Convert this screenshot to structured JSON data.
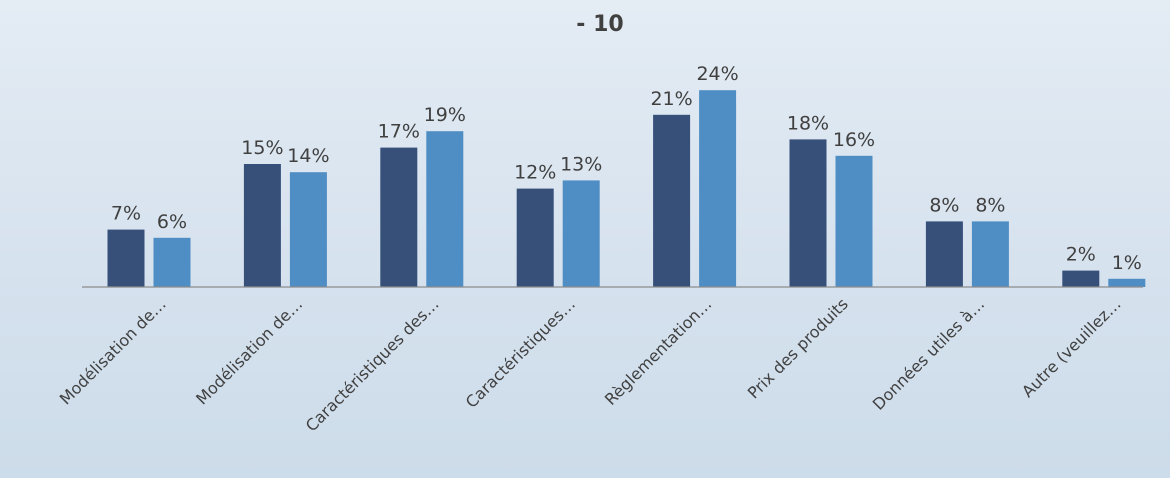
{
  "chart_data": {
    "type": "bar",
    "title": "- 10",
    "categories": [
      "Modélisation de…",
      "Modélisation de…",
      "Caractéristiques des…",
      "Caractéristiques…",
      "Règlementation…",
      "Prix des produits",
      "Données utiles à…",
      "Autre (veuillez…"
    ],
    "series": [
      {
        "color": "#36507a",
        "values": [
          7,
          15,
          17,
          12,
          21,
          18,
          8,
          2
        ],
        "labels": [
          "7%",
          "15%",
          "17%",
          "12%",
          "21%",
          "18%",
          "8%",
          "2%"
        ]
      },
      {
        "color": "#4f8ec4",
        "values": [
          6,
          14,
          19,
          13,
          24,
          16,
          8,
          1
        ],
        "labels": [
          "6%",
          "14%",
          "19%",
          "13%",
          "24%",
          "16%",
          "8%",
          "1%"
        ]
      }
    ],
    "ylim": [
      0,
      24
    ],
    "grid": false,
    "legend": "none",
    "axis_color": "#8c8c8c"
  }
}
